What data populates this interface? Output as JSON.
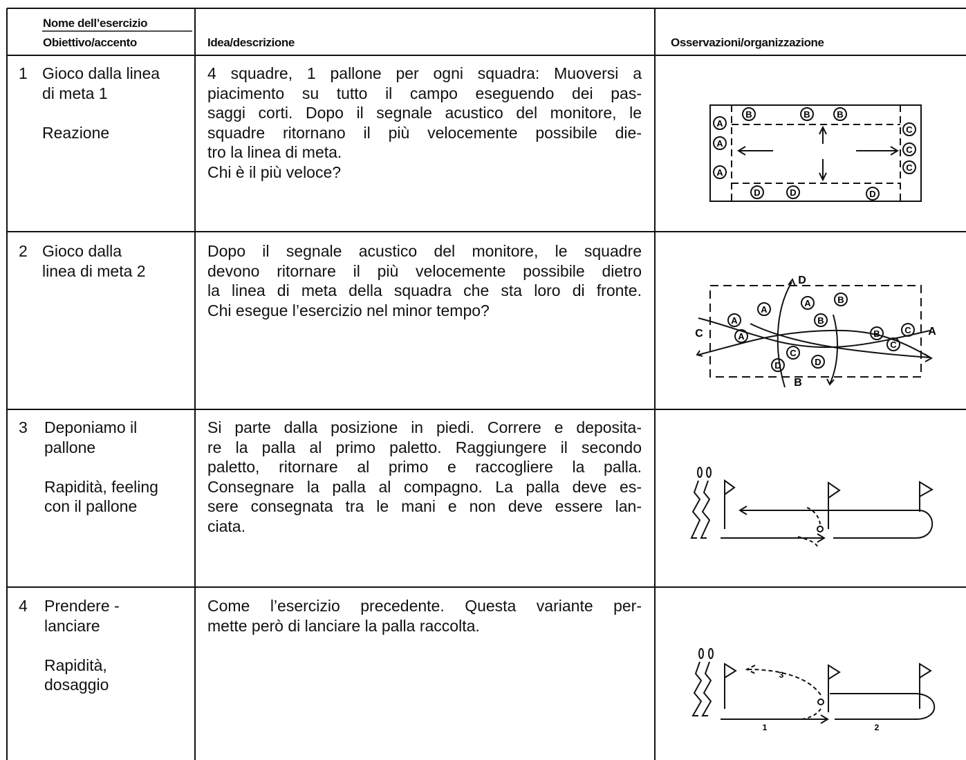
{
  "header": {
    "exercise_name": "Nome dell’esercizio",
    "objective": "Obiettivo/accento",
    "description": "Idea/descrizione",
    "notes": "Osservazioni/organizzazione"
  },
  "rows": [
    {
      "number": "1",
      "name": [
        "Gioco dalla linea",
        "di meta 1"
      ],
      "objective": [
        "Reazione"
      ],
      "description": [
        "4 squadre, 1 pallone per ogni squadra: Muoversi a",
        "piacimento su tutto il campo eseguendo dei pas-",
        "saggi corti. Dopo il segnale acustico del monitore, le",
        "squadre ritornano il più velocemente possibile die-",
        "tro la linea di meta.",
        "Chi è il più veloce?"
      ],
      "diagram": {
        "markers": [
          "A",
          "A",
          "A",
          "B",
          "B",
          "B",
          "C",
          "C",
          "C",
          "D",
          "D",
          "D"
        ]
      }
    },
    {
      "number": "2",
      "name": [
        "Gioco dalla",
        "linea di meta 2"
      ],
      "objective": [],
      "description": [
        "Dopo il segnale acustico del monitore, le squadre",
        "devono ritornare il più velocemente possibile dietro",
        "la linea di meta della squadra che sta loro di fronte.",
        "Chi esegue l’esercizio nel minor tempo?"
      ],
      "diagram": {
        "markers": [
          "A",
          "A",
          "A",
          "A",
          "B",
          "B",
          "B",
          "C",
          "C",
          "C",
          "D",
          "D",
          "D"
        ],
        "edge_labels": [
          "D",
          "C",
          "A",
          "B"
        ]
      }
    },
    {
      "number": "3",
      "name": [
        "Deponiamo il",
        "pallone"
      ],
      "objective": [
        "Rapidità, feeling",
        "con il pallone"
      ],
      "description": [
        "Si parte dalla posizione in piedi. Correre e deposita-",
        "re la palla al primo paletto. Raggiungere il secondo",
        "paletto, ritornare al primo e raccogliere la palla.",
        "Consegnare la palla al compagno. La palla deve es-",
        "sere consegnata tra le mani e non deve essere lan-",
        "ciata."
      ]
    },
    {
      "number": "4",
      "name": [
        "Prendere -",
        "lanciare"
      ],
      "objective": [
        "Rapidità,",
        "dosaggio"
      ],
      "description": [
        "Come l’esercizio precedente. Questa variante per-",
        "mette però di lanciare la palla raccolta."
      ],
      "diagram": {
        "step_labels": [
          "3",
          "1",
          "2"
        ]
      }
    }
  ]
}
